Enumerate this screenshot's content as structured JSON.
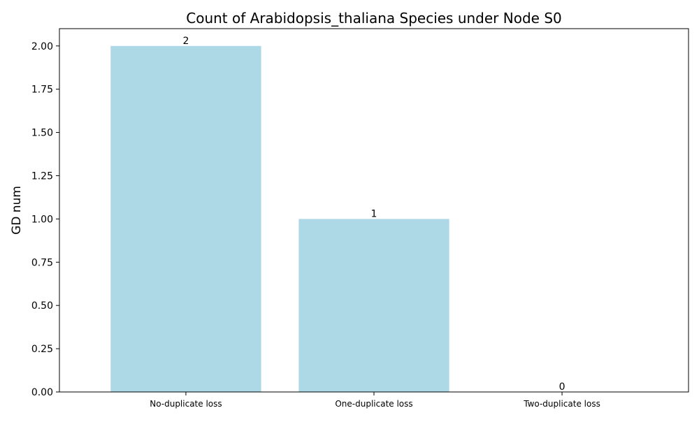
{
  "chart_data": {
    "type": "bar",
    "title": "Count of Arabidopsis_thaliana Species under Node S0",
    "xlabel": "",
    "ylabel": "GD num",
    "categories": [
      "No-duplicate loss",
      "One-duplicate loss",
      "Two-duplicate loss"
    ],
    "values": [
      2,
      1,
      0
    ],
    "data_labels": [
      "2",
      "1",
      "0"
    ],
    "ylim": [
      0,
      2.1
    ],
    "yticks": [
      0.0,
      0.25,
      0.5,
      0.75,
      1.0,
      1.25,
      1.5,
      1.75,
      2.0
    ],
    "ytick_labels": [
      "0.00",
      "0.25",
      "0.50",
      "0.75",
      "1.00",
      "1.25",
      "1.50",
      "1.75",
      "2.00"
    ],
    "grid": false,
    "legend": "none",
    "bar_color": "#add8e6"
  }
}
